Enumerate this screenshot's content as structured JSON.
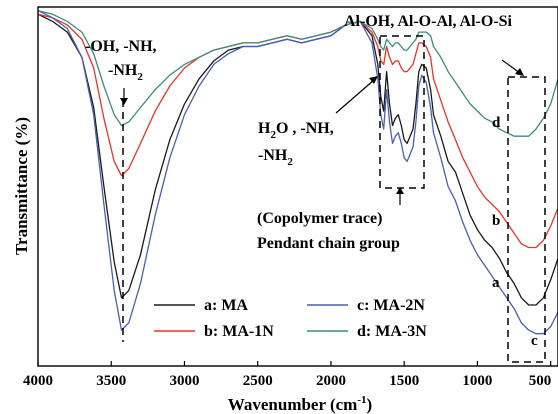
{
  "chart_data": {
    "type": "line",
    "xlabel": "Wavenumber (cm",
    "xlabel_sup": "-1",
    "xlabel_end": ")",
    "ylabel": "Transmittance (%)",
    "xlim": [
      4000,
      450
    ],
    "ylim": [
      0,
      100
    ],
    "x_ticks": [
      4000,
      3500,
      3000,
      2500,
      2000,
      1500,
      1000,
      500
    ],
    "y_ticks_shown": false,
    "series": [
      {
        "name": "a: MA",
        "letter": "a",
        "color": "#1a1a1a",
        "x": [
          4000,
          3900,
          3800,
          3700,
          3620,
          3550,
          3480,
          3430,
          3380,
          3300,
          3200,
          3100,
          3000,
          2900,
          2800,
          2700,
          2600,
          2500,
          2400,
          2300,
          2200,
          2100,
          2000,
          1900,
          1800,
          1720,
          1680,
          1660,
          1640,
          1620,
          1600,
          1580,
          1560,
          1540,
          1520,
          1500,
          1480,
          1460,
          1440,
          1420,
          1400,
          1380,
          1350,
          1320,
          1300,
          1250,
          1200,
          1150,
          1100,
          1050,
          1000,
          950,
          900,
          850,
          800,
          750,
          700,
          650,
          600,
          550,
          500,
          450
        ],
        "y": [
          98,
          96,
          93,
          86,
          72,
          50,
          29,
          19,
          21,
          31,
          49,
          63,
          73,
          80,
          85,
          88,
          89,
          89,
          90,
          91,
          90,
          91,
          92,
          95,
          96,
          92,
          84,
          75,
          71,
          82,
          73,
          67,
          69,
          70,
          67,
          63,
          62,
          64,
          66,
          73,
          82,
          84,
          83,
          77,
          70,
          64,
          57,
          54,
          48,
          42,
          38,
          35,
          33,
          30,
          26,
          23,
          19,
          17,
          17,
          19,
          24,
          30
        ]
      },
      {
        "name": "b: MA-1N",
        "letter": "b",
        "color": "#e8342e",
        "x": [
          4000,
          3900,
          3800,
          3700,
          3620,
          3550,
          3480,
          3430,
          3380,
          3300,
          3200,
          3100,
          3000,
          2900,
          2800,
          2700,
          2600,
          2500,
          2400,
          2300,
          2200,
          2100,
          2000,
          1900,
          1800,
          1720,
          1680,
          1660,
          1640,
          1620,
          1600,
          1580,
          1560,
          1540,
          1520,
          1500,
          1480,
          1460,
          1440,
          1420,
          1400,
          1380,
          1350,
          1320,
          1300,
          1250,
          1200,
          1150,
          1100,
          1050,
          1000,
          950,
          900,
          850,
          800,
          750,
          700,
          650,
          600,
          550,
          500,
          450
        ],
        "y": [
          98,
          97,
          95,
          91,
          83,
          69,
          57,
          53,
          55,
          62,
          71,
          78,
          83,
          86,
          88,
          89,
          90,
          90,
          91,
          92,
          91,
          92,
          93,
          95,
          96,
          93,
          89,
          85,
          84,
          89,
          86,
          84,
          85,
          85,
          83,
          82,
          82,
          83,
          84,
          87,
          90,
          90,
          89,
          86,
          80,
          74,
          68,
          63,
          58,
          54,
          50,
          47,
          45,
          43,
          40,
          37,
          34,
          33,
          33,
          35,
          39,
          44
        ]
      },
      {
        "name": "c: MA-2N",
        "letter": "c",
        "color": "#4a5fb0",
        "x": [
          4000,
          3900,
          3800,
          3700,
          3620,
          3550,
          3480,
          3430,
          3380,
          3300,
          3200,
          3100,
          3000,
          2900,
          2800,
          2700,
          2600,
          2500,
          2400,
          2300,
          2200,
          2100,
          2000,
          1900,
          1800,
          1720,
          1680,
          1660,
          1640,
          1620,
          1600,
          1580,
          1560,
          1540,
          1520,
          1500,
          1480,
          1460,
          1440,
          1420,
          1400,
          1380,
          1350,
          1320,
          1300,
          1250,
          1200,
          1150,
          1100,
          1050,
          1000,
          950,
          900,
          850,
          800,
          750,
          700,
          650,
          600,
          550,
          500,
          450
        ],
        "y": [
          99,
          97,
          94,
          86,
          70,
          45,
          21,
          10,
          12,
          23,
          42,
          58,
          70,
          78,
          84,
          87,
          89,
          89,
          90,
          91,
          90,
          91,
          92,
          95,
          96,
          90,
          80,
          70,
          66,
          77,
          68,
          62,
          64,
          65,
          62,
          58,
          57,
          59,
          61,
          68,
          78,
          81,
          79,
          72,
          65,
          58,
          50,
          46,
          40,
          35,
          31,
          28,
          25,
          22,
          19,
          16,
          12,
          10,
          9,
          9,
          11,
          15
        ]
      },
      {
        "name": "d: MA-3N",
        "letter": "d",
        "color": "#3d8a80",
        "x": [
          4000,
          3900,
          3800,
          3700,
          3620,
          3550,
          3480,
          3430,
          3380,
          3300,
          3200,
          3100,
          3000,
          2900,
          2800,
          2700,
          2600,
          2500,
          2400,
          2300,
          2200,
          2100,
          2000,
          1900,
          1800,
          1720,
          1680,
          1660,
          1640,
          1620,
          1600,
          1580,
          1560,
          1540,
          1520,
          1500,
          1480,
          1460,
          1440,
          1420,
          1400,
          1380,
          1350,
          1320,
          1300,
          1250,
          1200,
          1150,
          1100,
          1050,
          1000,
          950,
          900,
          850,
          800,
          750,
          700,
          650,
          600,
          550,
          500,
          450
        ],
        "y": [
          99,
          98,
          96,
          93,
          87,
          78,
          70,
          67,
          68,
          72,
          77,
          81,
          84,
          86,
          88,
          89,
          90,
          90,
          91,
          92,
          91,
          92,
          93,
          95,
          96,
          94,
          91,
          89,
          88,
          91,
          90,
          89,
          90,
          90,
          89,
          88,
          88,
          89,
          90,
          91,
          93,
          93,
          93,
          92,
          89,
          86,
          82,
          79,
          76,
          73,
          71,
          69,
          68,
          66,
          65,
          64,
          64,
          64,
          66,
          69,
          73,
          80
        ]
      }
    ],
    "legend": {
      "placement": "bottom",
      "entries": [
        {
          "label": "a: MA",
          "color": "#1a1a1a"
        },
        {
          "label": "b: MA-1N",
          "color": "#e8342e"
        },
        {
          "label": "c: MA-2N",
          "color": "#4a5fb0"
        },
        {
          "label": "d: MA-3N",
          "color": "#3d8a80"
        }
      ]
    },
    "annotations": {
      "oh_nh_line1": "-OH, -NH,",
      "oh_nh_line2": "-NH",
      "oh_nh_sub": "2",
      "al_bonds": "Al-OH, Al-O-Al, Al-O-Si",
      "h2o_a": "H",
      "h2o_sub": "2",
      "h2o_b": "O , -NH,",
      "h2o_line2": "-NH",
      "h2o_line2_sub": "2",
      "copolymer": "(Copolymer trace)",
      "pendant": "Pendant chain group"
    }
  }
}
